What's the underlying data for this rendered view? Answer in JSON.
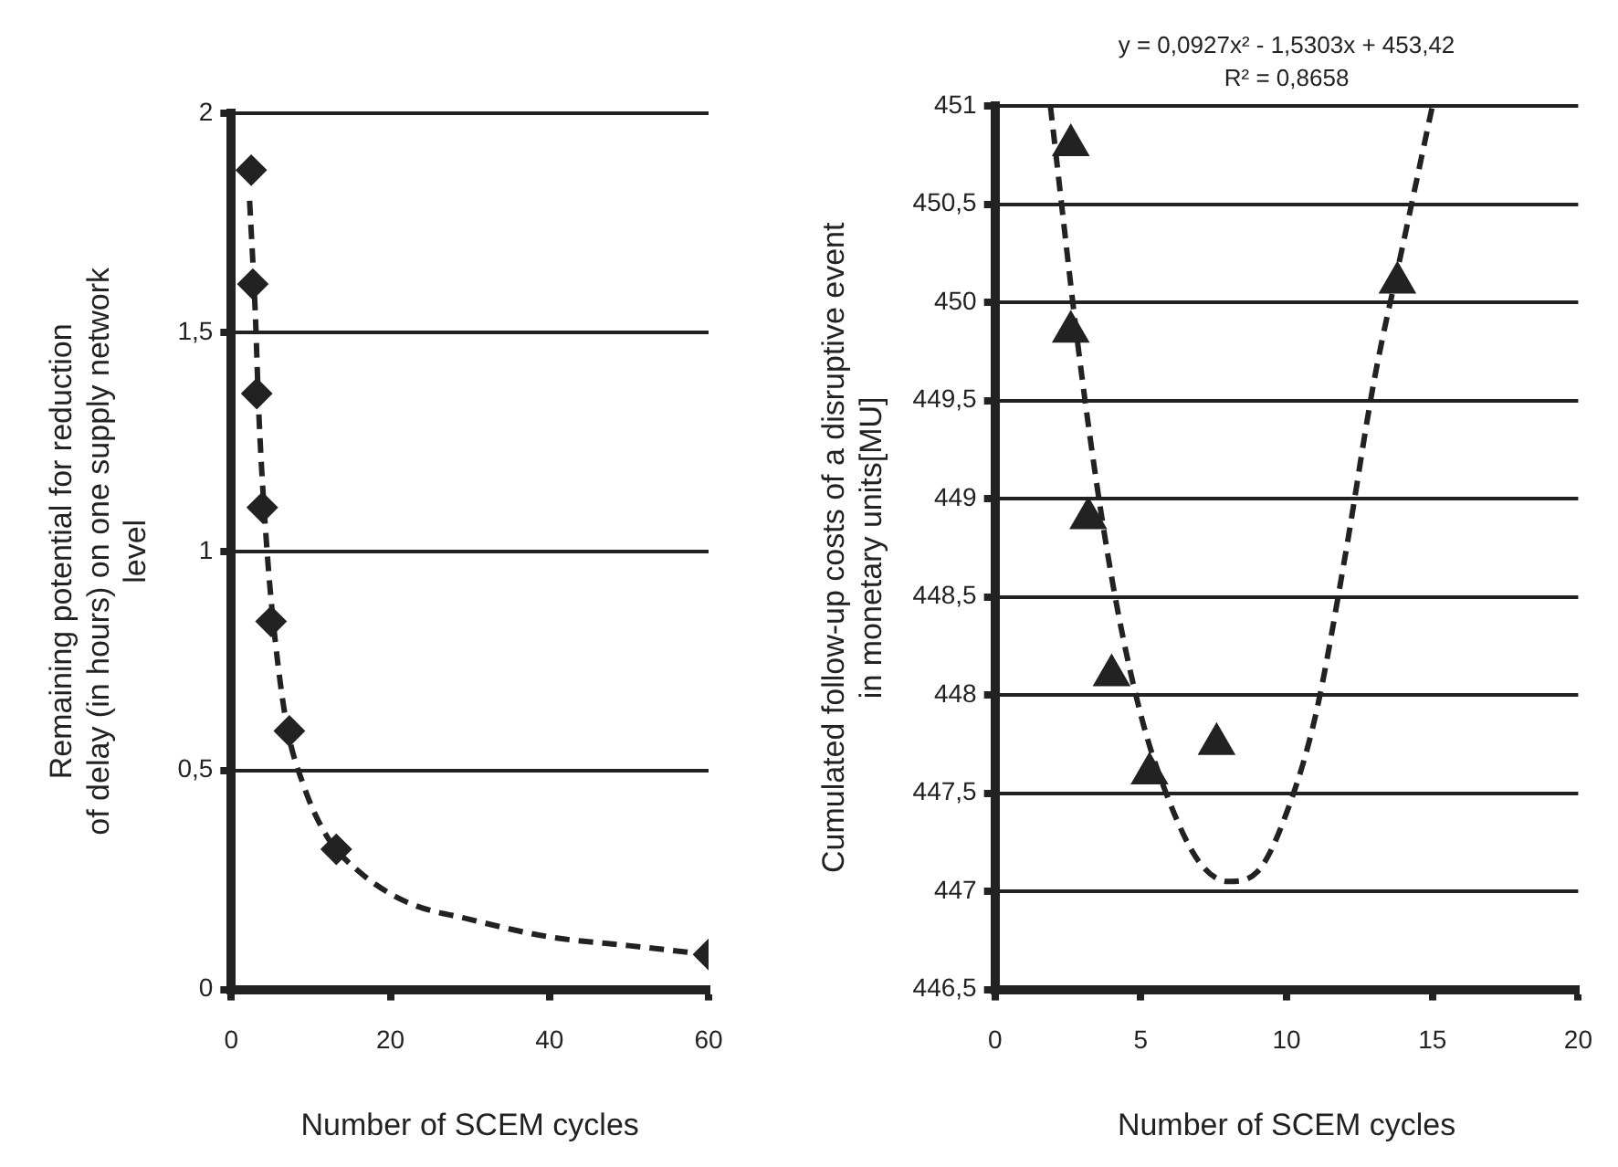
{
  "chart_data": [
    {
      "type": "scatter",
      "xlabel": "Number of SCEM cycles",
      "ylabel": "Remaining potential for reduction\nof delay (in hours) on one supply network\nlevel",
      "xlim": [
        0,
        60
      ],
      "xticks": [
        0,
        20,
        40,
        60
      ],
      "ylim": [
        0,
        2
      ],
      "yticks": [
        0,
        {
          "value": 0.5,
          "label": "0,5"
        },
        1,
        {
          "value": 1.5,
          "label": "1,5"
        },
        2
      ],
      "grid": "y",
      "legend": false,
      "series": [
        {
          "type": "scatter",
          "color": "#222222",
          "marker": "diamond",
          "x": [
            2.5,
            2.7,
            3.2,
            3.9,
            5,
            7.3,
            13.2,
            60
          ],
          "values": [
            1.87,
            1.61,
            1.36,
            1.1,
            0.84,
            0.59,
            0.32,
            0.08
          ]
        },
        {
          "type": "line",
          "color": "#222222",
          "marker": "none",
          "line_style": "dashed",
          "x": [
            2.3,
            3,
            3.5,
            4.5,
            5.5,
            7,
            9,
            12,
            16,
            22,
            30,
            40,
            50,
            60
          ],
          "values": [
            1.8,
            1.55,
            1.3,
            1.0,
            0.8,
            0.6,
            0.47,
            0.35,
            0.27,
            0.2,
            0.16,
            0.12,
            0.1,
            0.08
          ]
        }
      ]
    },
    {
      "type": "scatter",
      "xlabel": "Number of SCEM cycles",
      "ylabel": "Cumulated follow-up costs of a disruptive event\nin monetary units[MU]",
      "annotations": [
        "y = 0,0927x² - 1,5303x + 453,42",
        "R² = 0,8658"
      ],
      "xlim": [
        0,
        20
      ],
      "xticks": [
        0,
        5,
        10,
        15,
        20
      ],
      "ylim": [
        446.5,
        451
      ],
      "yticks": [
        {
          "value": 446.5,
          "label": "446,5"
        },
        447,
        {
          "value": 447.5,
          "label": "447,5"
        },
        448,
        {
          "value": 448.5,
          "label": "448,5"
        },
        449,
        {
          "value": 449.5,
          "label": "449,5"
        },
        450,
        {
          "value": 450.5,
          "label": "450,5"
        },
        451
      ],
      "grid": "y",
      "legend": false,
      "series": [
        {
          "type": "scatter",
          "color": "#222222",
          "marker": "triangle",
          "x": [
            2.6,
            2.6,
            3.2,
            4,
            5.3,
            7.6,
            13.8
          ],
          "values": [
            450.8,
            449.85,
            448.9,
            448.1,
            447.6,
            447.75,
            450.1
          ]
        },
        {
          "type": "line",
          "color": "#222222",
          "marker": "none",
          "line_style": "dashed",
          "x": [
            1.9,
            3,
            4,
            5,
            6,
            7,
            8,
            9,
            10,
            11,
            12,
            13,
            14,
            15
          ],
          "values": [
            451,
            449.6,
            448.6,
            447.9,
            447.45,
            447.15,
            447.05,
            447.1,
            447.4,
            447.9,
            448.7,
            449.6,
            450.3,
            451
          ]
        }
      ]
    }
  ]
}
